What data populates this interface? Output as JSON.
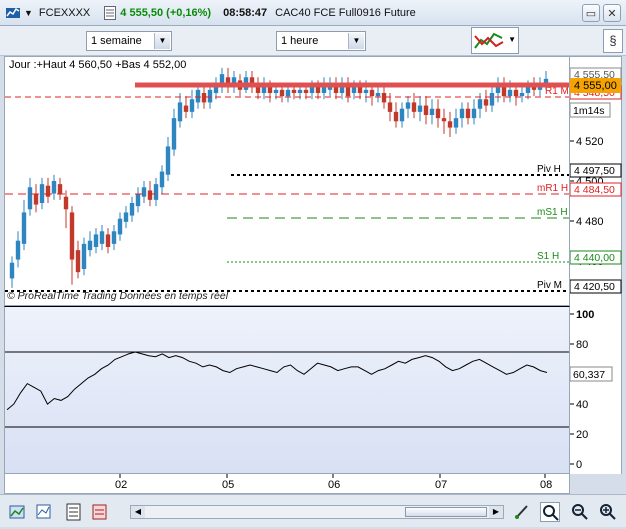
{
  "titlebar": {
    "symbol": "FCEXXXX",
    "price_change": "4 555,50 (+0,16%)",
    "time": "08:58:47",
    "instrument": "CAC40 FCE Full0916 Future"
  },
  "toolbar": {
    "period": "1 semaine",
    "interval": "1 heure"
  },
  "chart": {
    "info": "Jour :+Haut 4 560,50 +Bas 4 552,00",
    "watermark": "© ProRealTime Trading  Données en temps réel",
    "price_ticks": [
      "4 520",
      "4 500",
      "4 480",
      "4 460"
    ],
    "last_price_label": "4 555,00",
    "price_label_2": "4 555,50",
    "price_label_3": "4 548,50",
    "clock_label": "1m14s",
    "levels": [
      {
        "name": "R1 M",
        "value": "4 548,50",
        "color": "#e02020"
      },
      {
        "name": "Piv H",
        "value": "4 497,50",
        "color": "#000000"
      },
      {
        "name": "mR1 H",
        "value": "4 484,50",
        "color": "#e02020"
      },
      {
        "name": "mS1 H",
        "value": "",
        "color": "#1a8a1a"
      },
      {
        "name": "S1 H",
        "value": "4 440,00",
        "color": "#1a8a1a"
      },
      {
        "name": "Piv M",
        "value": "4 420,50",
        "color": "#000000"
      }
    ]
  },
  "indicator": {
    "ticks": [
      "100",
      "80",
      "60",
      "40",
      "20",
      "0"
    ],
    "value": "60,337"
  },
  "xaxis": {
    "labels": [
      "02",
      "05",
      "06",
      "07",
      "08"
    ]
  },
  "colors": {
    "up": "#2e86c1",
    "down": "#c0392b",
    "last_price_bg": "#f4a300"
  }
}
